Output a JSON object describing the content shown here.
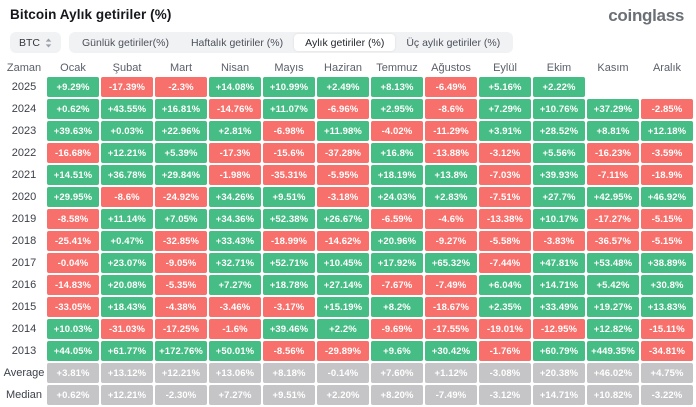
{
  "header": {
    "title": "Bitcoin Aylık getiriler (%)",
    "logo": "coinglass"
  },
  "toolbar": {
    "coin_selector": {
      "label": "BTC"
    },
    "tabs": [
      {
        "label": "Günlük getiriler(%)",
        "active": false
      },
      {
        "label": "Haftalık getiriler (%)",
        "active": false
      },
      {
        "label": "Aylık getiriler (%)",
        "active": true
      },
      {
        "label": "Üç aylık getiriler (%)",
        "active": false
      }
    ]
  },
  "colors": {
    "positive": "#45bd85",
    "negative": "#f7706b",
    "neutral": "#c5c5c7"
  },
  "table": {
    "time_header": "Zaman",
    "months": [
      "Ocak",
      "Şubat",
      "Mart",
      "Nisan",
      "Mayıs",
      "Haziran",
      "Temmuz",
      "Ağustos",
      "Eylül",
      "Ekim",
      "Kasım",
      "Aralık"
    ],
    "rows": [
      {
        "label": "2025",
        "type": "year",
        "values": [
          "+9.29%",
          "-17.39%",
          "-2.3%",
          "+14.08%",
          "+10.99%",
          "+2.49%",
          "+8.13%",
          "-6.49%",
          "+5.16%",
          "+2.22%",
          null,
          null
        ]
      },
      {
        "label": "2024",
        "type": "year",
        "values": [
          "+0.62%",
          "+43.55%",
          "+16.81%",
          "-14.76%",
          "+11.07%",
          "-6.96%",
          "+2.95%",
          "-8.6%",
          "+7.29%",
          "+10.76%",
          "+37.29%",
          "-2.85%"
        ]
      },
      {
        "label": "2023",
        "type": "year",
        "values": [
          "+39.63%",
          "+0.03%",
          "+22.96%",
          "+2.81%",
          "-6.98%",
          "+11.98%",
          "-4.02%",
          "-11.29%",
          "+3.91%",
          "+28.52%",
          "+8.81%",
          "+12.18%"
        ]
      },
      {
        "label": "2022",
        "type": "year",
        "values": [
          "-16.68%",
          "+12.21%",
          "+5.39%",
          "-17.3%",
          "-15.6%",
          "-37.28%",
          "+16.8%",
          "-13.88%",
          "-3.12%",
          "+5.56%",
          "-16.23%",
          "-3.59%"
        ]
      },
      {
        "label": "2021",
        "type": "year",
        "values": [
          "+14.51%",
          "+36.78%",
          "+29.84%",
          "-1.98%",
          "-35.31%",
          "-5.95%",
          "+18.19%",
          "+13.8%",
          "-7.03%",
          "+39.93%",
          "-7.11%",
          "-18.9%"
        ]
      },
      {
        "label": "2020",
        "type": "year",
        "values": [
          "+29.95%",
          "-8.6%",
          "-24.92%",
          "+34.26%",
          "+9.51%",
          "-3.18%",
          "+24.03%",
          "+2.83%",
          "-7.51%",
          "+27.7%",
          "+42.95%",
          "+46.92%"
        ]
      },
      {
        "label": "2019",
        "type": "year",
        "values": [
          "-8.58%",
          "+11.14%",
          "+7.05%",
          "+34.36%",
          "+52.38%",
          "+26.67%",
          "-6.59%",
          "-4.6%",
          "-13.38%",
          "+10.17%",
          "-17.27%",
          "-5.15%"
        ]
      },
      {
        "label": "2018",
        "type": "year",
        "values": [
          "-25.41%",
          "+0.47%",
          "-32.85%",
          "+33.43%",
          "-18.99%",
          "-14.62%",
          "+20.96%",
          "-9.27%",
          "-5.58%",
          "-3.83%",
          "-36.57%",
          "-5.15%"
        ]
      },
      {
        "label": "2017",
        "type": "year",
        "values": [
          "-0.04%",
          "+23.07%",
          "-9.05%",
          "+32.71%",
          "+52.71%",
          "+10.45%",
          "+17.92%",
          "+65.32%",
          "-7.44%",
          "+47.81%",
          "+53.48%",
          "+38.89%"
        ]
      },
      {
        "label": "2016",
        "type": "year",
        "values": [
          "-14.83%",
          "+20.08%",
          "-5.35%",
          "+7.27%",
          "+18.78%",
          "+27.14%",
          "-7.67%",
          "-7.49%",
          "+6.04%",
          "+14.71%",
          "+5.42%",
          "+30.8%"
        ]
      },
      {
        "label": "2015",
        "type": "year",
        "values": [
          "-33.05%",
          "+18.43%",
          "-4.38%",
          "-3.46%",
          "-3.17%",
          "+15.19%",
          "+8.2%",
          "-18.67%",
          "+2.35%",
          "+33.49%",
          "+19.27%",
          "+13.83%"
        ]
      },
      {
        "label": "2014",
        "type": "year",
        "values": [
          "+10.03%",
          "-31.03%",
          "-17.25%",
          "-1.6%",
          "+39.46%",
          "+2.2%",
          "-9.69%",
          "-17.55%",
          "-19.01%",
          "-12.95%",
          "+12.82%",
          "-15.11%"
        ]
      },
      {
        "label": "2013",
        "type": "year",
        "values": [
          "+44.05%",
          "+61.77%",
          "+172.76%",
          "+50.01%",
          "-8.56%",
          "-29.89%",
          "+9.6%",
          "+30.42%",
          "-1.76%",
          "+60.79%",
          "+449.35%",
          "-34.81%"
        ]
      },
      {
        "label": "Average",
        "type": "summary",
        "values": [
          "+3.81%",
          "+13.12%",
          "+12.21%",
          "+13.06%",
          "+8.18%",
          "-0.14%",
          "+7.60%",
          "+1.12%",
          "-3.08%",
          "+20.38%",
          "+46.02%",
          "+4.75%"
        ]
      },
      {
        "label": "Median",
        "type": "summary",
        "values": [
          "+0.62%",
          "+12.21%",
          "-2.30%",
          "+7.27%",
          "+9.51%",
          "+2.20%",
          "+8.20%",
          "-7.49%",
          "-3.12%",
          "+14.71%",
          "+10.82%",
          "-3.22%"
        ]
      }
    ]
  }
}
